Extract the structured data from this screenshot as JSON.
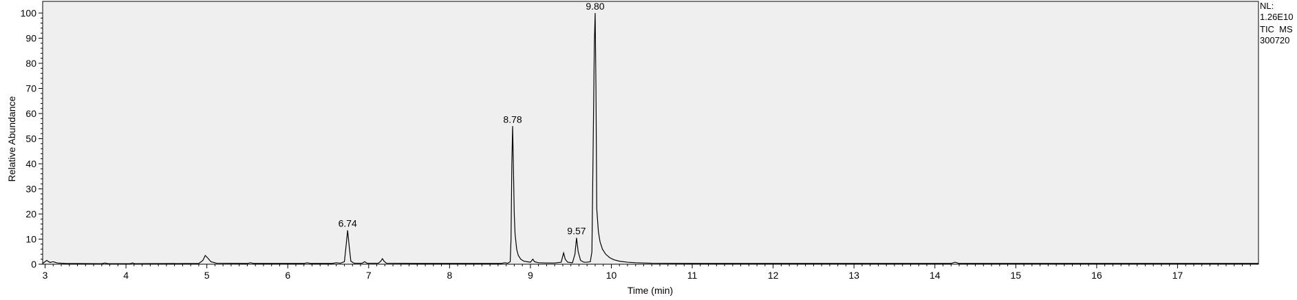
{
  "chart_data": {
    "type": "line",
    "xlabel": "Time (min)",
    "ylabel": "Relative Abundance",
    "xlim": [
      2.97,
      18.0
    ],
    "ylim": [
      0,
      100
    ],
    "x_ticks": [
      3,
      4,
      5,
      6,
      7,
      8,
      9,
      10,
      11,
      12,
      13,
      14,
      15,
      16,
      17
    ],
    "y_ticks": [
      0,
      10,
      20,
      30,
      40,
      50,
      60,
      70,
      80,
      90,
      100
    ],
    "background": "#efefef",
    "line_color": "#000000",
    "peaks": [
      {
        "label": "6.74",
        "x": 6.74,
        "y": 13.5
      },
      {
        "label": "8.78",
        "x": 8.78,
        "y": 55
      },
      {
        "label": "9.57",
        "x": 9.57,
        "y": 10.5
      },
      {
        "label": "9.80",
        "x": 9.8,
        "y": 100
      }
    ],
    "series": [
      {
        "values": [
          [
            2.97,
            0.3
          ],
          [
            3.02,
            1.5
          ],
          [
            3.06,
            0.7
          ],
          [
            3.1,
            1.0
          ],
          [
            3.15,
            0.5
          ],
          [
            3.25,
            0.3
          ],
          [
            3.7,
            0.2
          ],
          [
            3.74,
            0.5
          ],
          [
            3.78,
            0.2
          ],
          [
            4.05,
            0.2
          ],
          [
            4.08,
            0.5
          ],
          [
            4.11,
            0.2
          ],
          [
            4.9,
            0.3
          ],
          [
            4.95,
            1.5
          ],
          [
            4.98,
            3.5
          ],
          [
            5.01,
            2.5
          ],
          [
            5.05,
            1.0
          ],
          [
            5.12,
            0.4
          ],
          [
            5.5,
            0.3
          ],
          [
            5.54,
            0.6
          ],
          [
            5.58,
            0.3
          ],
          [
            6.2,
            0.3
          ],
          [
            6.24,
            0.6
          ],
          [
            6.28,
            0.3
          ],
          [
            6.55,
            0.3
          ],
          [
            6.6,
            0.6
          ],
          [
            6.65,
            0.4
          ],
          [
            6.7,
            1.0
          ],
          [
            6.72,
            7.0
          ],
          [
            6.74,
            13.5
          ],
          [
            6.76,
            7.0
          ],
          [
            6.78,
            1.2
          ],
          [
            6.82,
            0.4
          ],
          [
            6.92,
            0.4
          ],
          [
            6.95,
            1.0
          ],
          [
            6.98,
            0.4
          ],
          [
            7.12,
            0.4
          ],
          [
            7.15,
            1.2
          ],
          [
            7.17,
            2.2
          ],
          [
            7.19,
            1.2
          ],
          [
            7.22,
            0.4
          ],
          [
            7.6,
            0.3
          ],
          [
            8.0,
            0.3
          ],
          [
            8.4,
            0.3
          ],
          [
            8.64,
            0.3
          ],
          [
            8.68,
            0.6
          ],
          [
            8.72,
            0.4
          ],
          [
            8.75,
            1.0
          ],
          [
            8.76,
            10.0
          ],
          [
            8.77,
            40.0
          ],
          [
            8.78,
            55.0
          ],
          [
            8.79,
            38.0
          ],
          [
            8.8,
            20.0
          ],
          [
            8.81,
            12.0
          ],
          [
            8.83,
            6.0
          ],
          [
            8.85,
            3.5
          ],
          [
            8.88,
            2.0
          ],
          [
            8.92,
            1.2
          ],
          [
            8.96,
            1.0
          ],
          [
            9.0,
            0.8
          ],
          [
            9.03,
            2.0
          ],
          [
            9.05,
            1.0
          ],
          [
            9.1,
            0.6
          ],
          [
            9.2,
            0.5
          ],
          [
            9.3,
            0.5
          ],
          [
            9.38,
            0.8
          ],
          [
            9.41,
            4.5
          ],
          [
            9.43,
            2.0
          ],
          [
            9.46,
            0.8
          ],
          [
            9.52,
            0.6
          ],
          [
            9.55,
            4.0
          ],
          [
            9.57,
            10.5
          ],
          [
            9.59,
            5.0
          ],
          [
            9.62,
            1.5
          ],
          [
            9.66,
            0.8
          ],
          [
            9.7,
            0.8
          ],
          [
            9.74,
            1.0
          ],
          [
            9.76,
            5.0
          ],
          [
            9.78,
            60.0
          ],
          [
            9.79,
            88.0
          ],
          [
            9.8,
            100.0
          ],
          [
            9.81,
            70.0
          ],
          [
            9.82,
            22.0
          ],
          [
            9.84,
            13.0
          ],
          [
            9.86,
            9.0
          ],
          [
            9.89,
            6.0
          ],
          [
            9.93,
            4.0
          ],
          [
            9.98,
            2.6
          ],
          [
            10.03,
            1.8
          ],
          [
            10.1,
            1.2
          ],
          [
            10.2,
            0.8
          ],
          [
            10.3,
            0.6
          ],
          [
            10.5,
            0.4
          ],
          [
            11.0,
            0.3
          ],
          [
            12.0,
            0.3
          ],
          [
            13.0,
            0.3
          ],
          [
            14.0,
            0.3
          ],
          [
            14.2,
            0.3
          ],
          [
            14.25,
            0.8
          ],
          [
            14.3,
            0.3
          ],
          [
            15.0,
            0.3
          ],
          [
            16.0,
            0.3
          ],
          [
            17.0,
            0.3
          ],
          [
            18.0,
            0.3
          ]
        ]
      }
    ]
  },
  "info": {
    "nl_label": "NL:",
    "nl_value": "1.26E10",
    "scan_type": "TIC  MS",
    "sample_id": "300720"
  }
}
